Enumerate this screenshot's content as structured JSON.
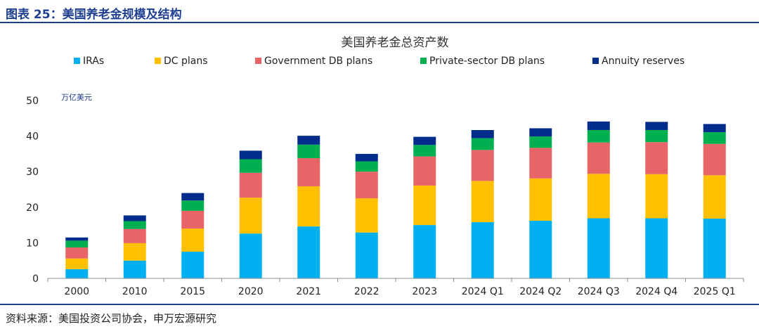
{
  "figure_title": "图表 25：美国养老金规模及结构",
  "source": "资料来源：美国投资公司协会，申万宏源研究",
  "colors": {
    "IRAs": "#00b0f0",
    "DC plans": "#ffc000",
    "Government DB plans": "#e96466",
    "Private-sector DB plans": "#00b050",
    "Annuity reserves": "#002d8c",
    "accent": "#1f3f8f"
  },
  "chart_data": {
    "type": "bar",
    "stacked": true,
    "title": "美国养老金总资产数",
    "unit_label": "万亿美元",
    "xlabel": "",
    "ylabel": "",
    "ylim": [
      0,
      50
    ],
    "yticks": [
      0,
      10,
      20,
      30,
      40,
      50
    ],
    "grid": false,
    "legend": "top",
    "categories": [
      "2000",
      "2010",
      "2015",
      "2020",
      "2021",
      "2022",
      "2023",
      "2024 Q1",
      "2024 Q2",
      "2024 Q3",
      "2024 Q4",
      "2025 Q1"
    ],
    "series": [
      {
        "name": "IRAs",
        "values": [
          2.6,
          5.0,
          7.5,
          12.6,
          14.6,
          12.9,
          15.0,
          15.8,
          16.2,
          16.9,
          16.9,
          16.8
        ]
      },
      {
        "name": "DC plans",
        "values": [
          3.0,
          4.9,
          6.5,
          10.1,
          11.3,
          9.6,
          11.1,
          11.6,
          11.9,
          12.5,
          12.4,
          12.2
        ]
      },
      {
        "name": "Government DB plans",
        "values": [
          3.1,
          4.0,
          5.0,
          7.0,
          7.9,
          7.5,
          8.2,
          8.7,
          8.6,
          8.8,
          9.0,
          8.8
        ]
      },
      {
        "name": "Private-sector DB plans",
        "values": [
          1.9,
          2.2,
          2.9,
          3.8,
          3.8,
          2.9,
          3.2,
          3.3,
          3.2,
          3.5,
          3.4,
          3.3
        ]
      },
      {
        "name": "Annuity reserves",
        "values": [
          0.9,
          1.6,
          2.1,
          2.4,
          2.5,
          2.1,
          2.3,
          2.3,
          2.3,
          2.4,
          2.3,
          2.3
        ]
      }
    ]
  }
}
